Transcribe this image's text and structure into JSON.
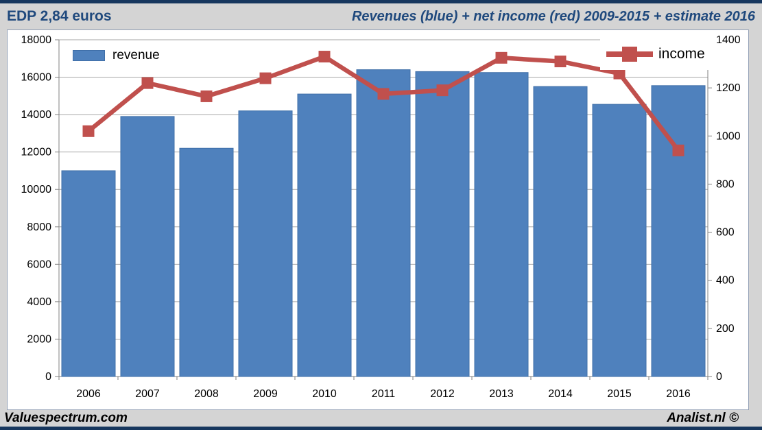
{
  "header": {
    "ticker_label": "EDP 2,84 euros",
    "title": "Revenues (blue) + net income (red) 2009-2015 + estimate 2016"
  },
  "legend": {
    "revenue": "revenue",
    "income": "income"
  },
  "footer": {
    "left": "Valuespectrum.com",
    "right": "Analist.nl ©"
  },
  "colors": {
    "bar": "#4f81bd",
    "bar_border": "#3f6fa8",
    "line": "#c0504d",
    "header_text": "#1f497d",
    "accent_strip": "#17375e",
    "page_background": "#d4d4d4",
    "panel_background": "#ffffff",
    "gridline": "#a6a6a6",
    "axis": "#808080"
  },
  "chart_data": {
    "type": "bar",
    "subtype": "combo bar + line, dual y-axis",
    "title": "Revenues (blue) + net income (red) 2009-2015 + estimate 2016",
    "categories": [
      "2006",
      "2007",
      "2008",
      "2009",
      "2010",
      "2011",
      "2012",
      "2013",
      "2014",
      "2015",
      "2016"
    ],
    "series": [
      {
        "name": "revenue",
        "type": "bar",
        "axis": "left",
        "color": "#4f81bd",
        "values": [
          11000,
          13900,
          12200,
          14200,
          15100,
          16400,
          16300,
          16250,
          15500,
          14550,
          15550
        ]
      },
      {
        "name": "income",
        "type": "line",
        "axis": "right",
        "color": "#c0504d",
        "marker": "square",
        "values": [
          1020,
          1220,
          1165,
          1240,
          1330,
          1175,
          1190,
          1325,
          1310,
          1260,
          940
        ]
      }
    ],
    "left_axis": {
      "min": 0,
      "max": 18000,
      "step": 2000,
      "ticks": [
        0,
        2000,
        4000,
        6000,
        8000,
        10000,
        12000,
        14000,
        16000,
        18000
      ]
    },
    "right_axis": {
      "min": 0,
      "max": 1400,
      "step": 200,
      "ticks": [
        0,
        200,
        400,
        600,
        800,
        1000,
        1200,
        1400
      ]
    },
    "grid": true,
    "legend_position": "revenue: inside top-left; income: inside top-right"
  }
}
